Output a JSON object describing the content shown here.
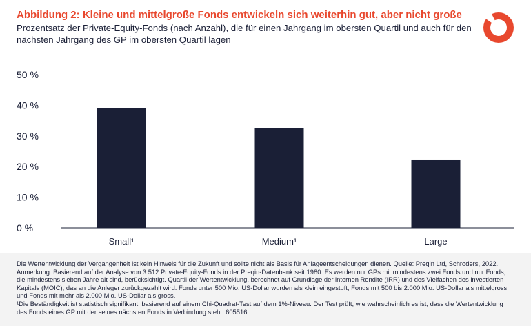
{
  "header": {
    "title": "Abbildung 2: Kleine und mittelgroße Fonds entwickeln sich weiterhin gut, aber nicht große",
    "subtitle": "Prozentsatz der Private-Equity-Fonds (nach Anzahl), die für einen Jahrgang im obersten Quartil und auch für den nächsten Jahrgang des GP im obersten Quartil lagen"
  },
  "colors": {
    "accent": "#e8482e",
    "bar": "#1a1f36",
    "footnote_bg": "#f3f3f3"
  },
  "logo": {
    "icon": "schroders-ring-logo-icon"
  },
  "chart_data": {
    "type": "bar",
    "categories": [
      "Small¹",
      "Medium¹",
      "Large"
    ],
    "values": [
      39,
      32.5,
      22.3
    ],
    "title": "",
    "xlabel": "",
    "ylabel": "",
    "ylim": [
      0,
      50
    ],
    "yticks": [
      0,
      10,
      20,
      30,
      40,
      50
    ],
    "ytick_labels": [
      "0 %",
      "10 %",
      "20 %",
      "30 %",
      "40 %",
      "50 %"
    ],
    "grid": false,
    "legend": "none"
  },
  "footnote": {
    "line1": "Die Wertentwicklung der Vergangenheit ist kein Hinweis für die Zukunft und sollte nicht als Basis für Anlageentscheidungen dienen. Quelle: Preqin Ltd, Schroders, 2022.",
    "line2": "Anmerkung: Basierend auf der Analyse von 3.512 Private-Equity-Fonds in der Preqin-Datenbank seit 1980. Es werden nur GPs mit mindestens zwei Fonds und nur Fonds, die mindestens sieben Jahre alt sind, berücksichtigt. Quartil der Wertentwicklung, berechnet auf Grundlage der internen Rendite (IRR) und des Vielfachen des investierten Kapitals (MOIC), das an die Anleger zurückgezahlt wird. Fonds unter 500 Mio. US-Dollar wurden als klein eingestuft, Fonds mit 500 bis 2.000 Mio. US-Dollar als mittelgross und Fonds mit mehr als 2.000 Mio. US-Dollar als gross.",
    "line3": "¹Die Beständigkeit ist statistisch signifikant, basierend auf einem Chi-Quadrat-Test auf dem 1%-Niveau. Der Test prüft, wie wahrscheinlich es ist, dass die Wertentwicklung des Fonds eines GP mit der seines nächsten Fonds in Verbindung steht. 605516"
  }
}
